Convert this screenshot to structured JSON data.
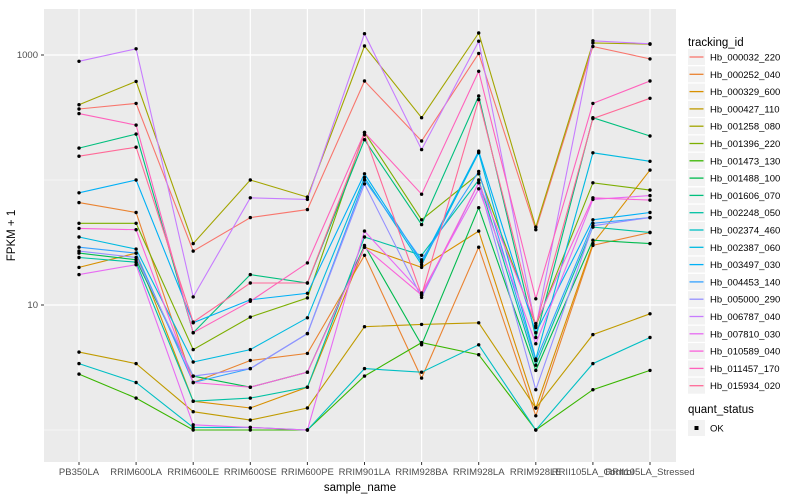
{
  "chart_data": {
    "type": "line",
    "title": "",
    "xlabel": "sample_name",
    "ylabel": "FPKM + 1",
    "y_scale": "log10",
    "panel_bg": "#EBEBEB",
    "grid_color": "#FFFFFF",
    "point_color": "#000000",
    "tick_color": "#333333",
    "legend_key_bg": "#F2F2F2",
    "ylim": [
      1,
      1700
    ],
    "x_categories": [
      "PB350LA",
      "RRIM600LA",
      "RRIM600LE",
      "RRIM600SE",
      "RRIM600PE",
      "RRIM901LA",
      "RRIM928BA",
      "RRIM928LA",
      "RRIM928LE",
      "RRII105LA_Control",
      "RRII105LA_Stressed"
    ],
    "y_ticks": [
      {
        "value": 1000,
        "label": "1000"
      },
      {
        "value": 10,
        "label": "10"
      }
    ],
    "y_minor_breaks": [
      100,
      1
    ],
    "legend": {
      "tracking_id_title": "tracking_id",
      "quant_status_title": "quant_status",
      "quant_status_value": "OK",
      "position": "right"
    },
    "series": [
      {
        "name": "Hb_000032_220",
        "color": "#F8766D",
        "values": [
          370,
          410,
          27,
          50,
          58,
          620,
          205,
          1030,
          40,
          1170,
          930
        ]
      },
      {
        "name": "Hb_000252_040",
        "color": "#EA8331",
        "values": [
          66,
          55,
          2.4,
          3.6,
          4.1,
          25,
          2.6,
          29,
          1.3,
          30,
          38
        ]
      },
      {
        "name": "Hb_000329_600",
        "color": "#D89000",
        "values": [
          20,
          26,
          1.7,
          1.5,
          2.2,
          29,
          20,
          39,
          1.5,
          31,
          120
        ]
      },
      {
        "name": "Hb_000427_110",
        "color": "#C09B00",
        "values": [
          4.2,
          3.4,
          1.4,
          1.2,
          1.5,
          6.7,
          7,
          7.2,
          1.5,
          5.8,
          8.5
        ]
      },
      {
        "name": "Hb_001258_080",
        "color": "#A3A500",
        "values": [
          400,
          615,
          31,
          100,
          73,
          1180,
          315,
          1500,
          42,
          1250,
          1220
        ]
      },
      {
        "name": "Hb_001396_220",
        "color": "#7CAE00",
        "values": [
          45,
          45,
          4.4,
          8,
          11.4,
          240,
          48,
          112,
          6.8,
          95,
          83
        ]
      },
      {
        "name": "Hb_001473_130",
        "color": "#39B600",
        "values": [
          2.8,
          1.8,
          1,
          1,
          1,
          2.7,
          5,
          4,
          1,
          2.1,
          3
        ]
      },
      {
        "name": "Hb_001488_100",
        "color": "#00BB4E",
        "values": [
          26,
          23,
          2.7,
          2.2,
          2.9,
          30,
          4.8,
          60,
          3,
          33,
          31
        ]
      },
      {
        "name": "Hb_001606_070",
        "color": "#00BF7D",
        "values": [
          180,
          233,
          6,
          17.5,
          15,
          210,
          44,
          470,
          5.5,
          315,
          225
        ]
      },
      {
        "name": "Hb_002248_050",
        "color": "#00C1A3",
        "values": [
          24,
          22,
          1.7,
          1.8,
          2.2,
          35,
          25,
          100,
          3.3,
          42,
          38
        ]
      },
      {
        "name": "Hb_002374_460",
        "color": "#00BFC4",
        "values": [
          3.4,
          2.4,
          1.05,
          1.05,
          1,
          3.1,
          2.9,
          4.8,
          1,
          3.4,
          5.5
        ]
      },
      {
        "name": "Hb_002387_060",
        "color": "#00BAE0",
        "values": [
          35,
          28,
          3.5,
          4.4,
          7.9,
          105,
          21,
          165,
          3.7,
          165,
          141
        ]
      },
      {
        "name": "Hb_003497_030",
        "color": "#00B0F6",
        "values": [
          79,
          100,
          7.2,
          11,
          12.4,
          112,
          22,
          170,
          6,
          48,
          55
        ]
      },
      {
        "name": "Hb_004453_140",
        "color": "#35A2FF",
        "values": [
          29,
          26,
          2.4,
          3.1,
          5.9,
          100,
          23,
          117,
          3.6,
          45,
          50
        ]
      },
      {
        "name": "Hb_005000_290",
        "color": "#9590FF",
        "values": [
          27,
          24,
          2.7,
          3.1,
          5.9,
          93,
          11.5,
          95,
          2.1,
          43,
          50
        ]
      },
      {
        "name": "Hb_006787_040",
        "color": "#C77CFF",
        "values": [
          890,
          1120,
          11.6,
          72,
          70,
          1480,
          175,
          1290,
          6.6,
          1300,
          1230
        ]
      },
      {
        "name": "Hb_007810_030",
        "color": "#E76BF3",
        "values": [
          17.5,
          21,
          1.1,
          1.05,
          1,
          39,
          12.5,
          85,
          4.9,
          70,
          75
        ]
      },
      {
        "name": "Hb_010589_040",
        "color": "#FA62DB",
        "values": [
          41,
          40,
          2.4,
          2.2,
          2.9,
          29,
          12,
          95,
          7.1,
          72,
          69
        ]
      },
      {
        "name": "Hb_011457_170",
        "color": "#FF62BC",
        "values": [
          340,
          275,
          6,
          10.7,
          21.7,
          240,
          77,
          740,
          11.2,
          410,
          620
        ]
      },
      {
        "name": "Hb_015934_020",
        "color": "#FF6A98",
        "values": [
          155,
          183,
          7.3,
          15,
          15,
          230,
          12,
          440,
          6.8,
          310,
          450
        ]
      }
    ]
  }
}
